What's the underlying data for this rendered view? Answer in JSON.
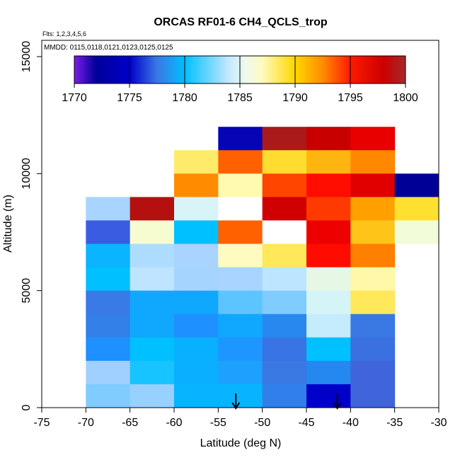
{
  "chart_data": {
    "type": "heatmap",
    "title": "ORCAS RF01-6 CH4_QCLS_trop",
    "flights_label": "Flts: 1,2,3,4,5,6",
    "dates_label": "MMDD: 0115,0118,0121,0123,0125,0125",
    "xlabel": "Latitude (deg N)",
    "ylabel": "Altitude (m)",
    "xlim": [
      -75,
      -30
    ],
    "ylim": [
      0,
      15000
    ],
    "xticks": [
      "-75",
      "-70",
      "-65",
      "-60",
      "-55",
      "-50",
      "-45",
      "-40",
      "-35",
      "-30"
    ],
    "yticks": [
      "0",
      "5000",
      "10000",
      "15000"
    ],
    "x_bin_edges": [
      -70,
      -65,
      -60,
      -55,
      -50,
      -45,
      -40,
      -35,
      -30
    ],
    "y_bin_size_m": 1000,
    "colorbar": {
      "range": [
        1770,
        1800
      ],
      "ticks": [
        "1770",
        "1775",
        "1780",
        "1785",
        "1790",
        "1795",
        "1800"
      ],
      "stops": [
        [
          1770,
          "#7b1ce6"
        ],
        [
          1772,
          "#00009a"
        ],
        [
          1775,
          "#0000c8"
        ],
        [
          1777.5,
          "#3a78e4"
        ],
        [
          1780,
          "#00bfff"
        ],
        [
          1784,
          "#c4e8ff"
        ],
        [
          1785.5,
          "#eefaee"
        ],
        [
          1787,
          "#fffac0"
        ],
        [
          1790,
          "#ffd700"
        ],
        [
          1792.5,
          "#ff8c00"
        ],
        [
          1795,
          "#ff1a00"
        ],
        [
          1798,
          "#cc0000"
        ],
        [
          1800,
          "#a52a2a"
        ]
      ]
    },
    "cells_by_altitude_bin_top_down": [
      {
        "alt": "11000-12000",
        "colors": [
          null,
          null,
          null,
          "#0505b5",
          "#aa1a1a",
          "#c80000",
          "#e80000",
          null
        ]
      },
      {
        "alt": "10000-11000",
        "colors": [
          null,
          null,
          "#ffeb6a",
          "#ff6000",
          "#ffdc30",
          "#ffb510",
          "#ff8800",
          null
        ]
      },
      {
        "alt": "9000-10000",
        "colors": [
          null,
          null,
          "#ff8c00",
          "#fffab0",
          "#ff4500",
          "#ff0d00",
          "#e00000",
          "#000096"
        ]
      },
      {
        "alt": "8000-9000",
        "colors": [
          "#a8d4ff",
          "#b41010",
          "#d8f4f8",
          "#ffffff",
          "#d00000",
          "#ff3a00",
          "#ffa000",
          "#ffe030"
        ]
      },
      {
        "alt": "7000-8000",
        "colors": [
          "#3a5ce0",
          "#f7fcd0",
          "#00c0ff",
          "#ff6000",
          "#ffffff",
          "#ee0000",
          "#ffc418",
          "#f3fcd8"
        ]
      },
      {
        "alt": "6000-7000",
        "colors": [
          "#0ab4ff",
          "#aedcff",
          "#a8d4ff",
          "#fffac0",
          "#ffe85a",
          "#ff0b00",
          "#ff8000",
          null
        ]
      },
      {
        "alt": "5000-6000",
        "colors": [
          "#00c0ff",
          "#bee4ff",
          "#a4d4ff",
          "#a8d4ff",
          "#bde5ff",
          "#e6f7e6",
          "#fff8a8",
          null
        ]
      },
      {
        "alt": "4000-5000",
        "colors": [
          "#3a7ae8",
          "#10a8ff",
          "#10a8ff",
          "#5ec4ff",
          "#80ccff",
          "#d4f4f8",
          "#ffe85a",
          null
        ]
      },
      {
        "alt": "3000-4000",
        "colors": [
          "#3280e8",
          "#10a8ff",
          "#1e90ff",
          "#10a8ff",
          "#2888f0",
          "#c4ecfc",
          "#3a78e4",
          null
        ]
      },
      {
        "alt": "2000-3000",
        "colors": [
          "#1e90ff",
          "#00c0ff",
          "#08b0ff",
          "#1e96ff",
          "#3874e4",
          "#00c0ff",
          "#3a70e0",
          null
        ]
      },
      {
        "alt": "1000-2000",
        "colors": [
          "#a0d0ff",
          "#18c4ff",
          "#0ab0ff",
          "#1ea0ff",
          "#3a78e4",
          "#2488f0",
          "#4064dc",
          null
        ]
      },
      {
        "alt": "0-1000",
        "colors": [
          "#80ccff",
          "#98d0ff",
          "#08b4ff",
          "#08b4ff",
          "#3080ec",
          "#0000c8",
          "#4064dc",
          null
        ]
      }
    ],
    "arrow_markers_latitude": [
      -53,
      -41.5
    ],
    "grid": false
  }
}
